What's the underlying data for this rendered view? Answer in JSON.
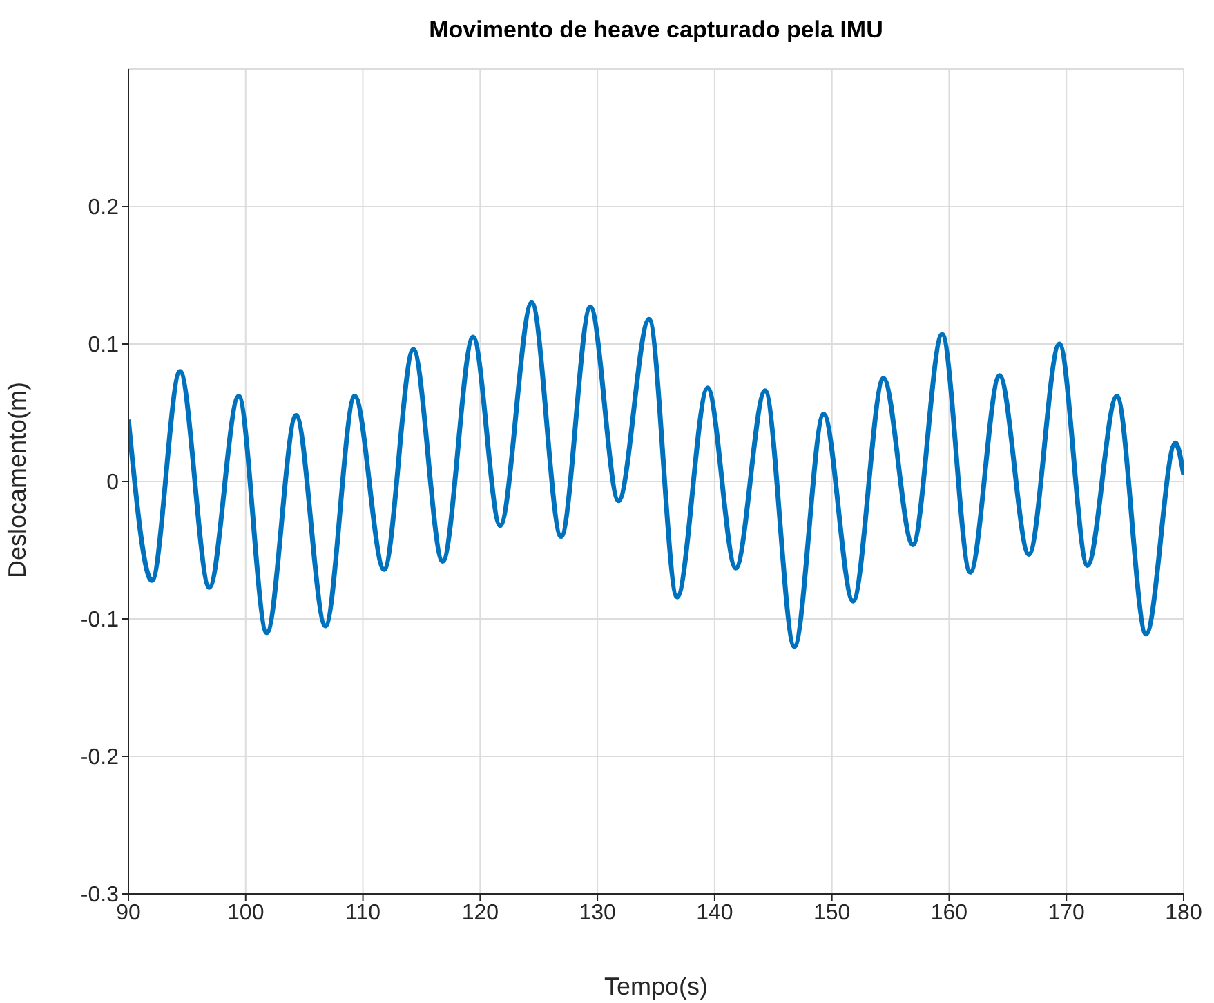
{
  "chart_data": {
    "type": "line",
    "title": "Movimento de heave capturado pela IMU",
    "xlabel": "Tempo(s)",
    "ylabel": "Deslocamento(m)",
    "xlim": [
      90,
      180
    ],
    "xticks": [
      90,
      100,
      110,
      120,
      130,
      140,
      150,
      160,
      170,
      180
    ],
    "ylim": [
      -0.3,
      0.3
    ],
    "yticks": [
      -0.3,
      -0.2,
      -0.1,
      0,
      0.1,
      0.2
    ],
    "grid": true,
    "series": [
      {
        "color": "#0072bd",
        "x": [
          90,
          92,
          94.4,
          96.9,
          99.4,
          101.8,
          104.3,
          106.8,
          109.3,
          111.8,
          114.3,
          116.8,
          119.4,
          121.7,
          124.4,
          126.9,
          129.4,
          131.8,
          134.4,
          136.8,
          139.4,
          141.8,
          144.3,
          146.8,
          149.3,
          151.8,
          154.4,
          156.9,
          159.4,
          161.8,
          164.3,
          166.8,
          169.4,
          171.8,
          174.3,
          176.8,
          179.3,
          180
        ],
        "values": [
          0.045,
          -0.072,
          0.08,
          -0.077,
          0.062,
          -0.11,
          0.048,
          -0.105,
          0.062,
          -0.064,
          0.096,
          -0.058,
          0.105,
          -0.032,
          0.13,
          -0.04,
          0.127,
          -0.014,
          0.118,
          -0.084,
          0.068,
          -0.063,
          0.066,
          -0.12,
          0.049,
          -0.087,
          0.075,
          -0.046,
          0.107,
          -0.066,
          0.077,
          -0.053,
          0.1,
          -0.061,
          0.062,
          -0.111,
          0.028,
          0.005
        ]
      }
    ]
  }
}
